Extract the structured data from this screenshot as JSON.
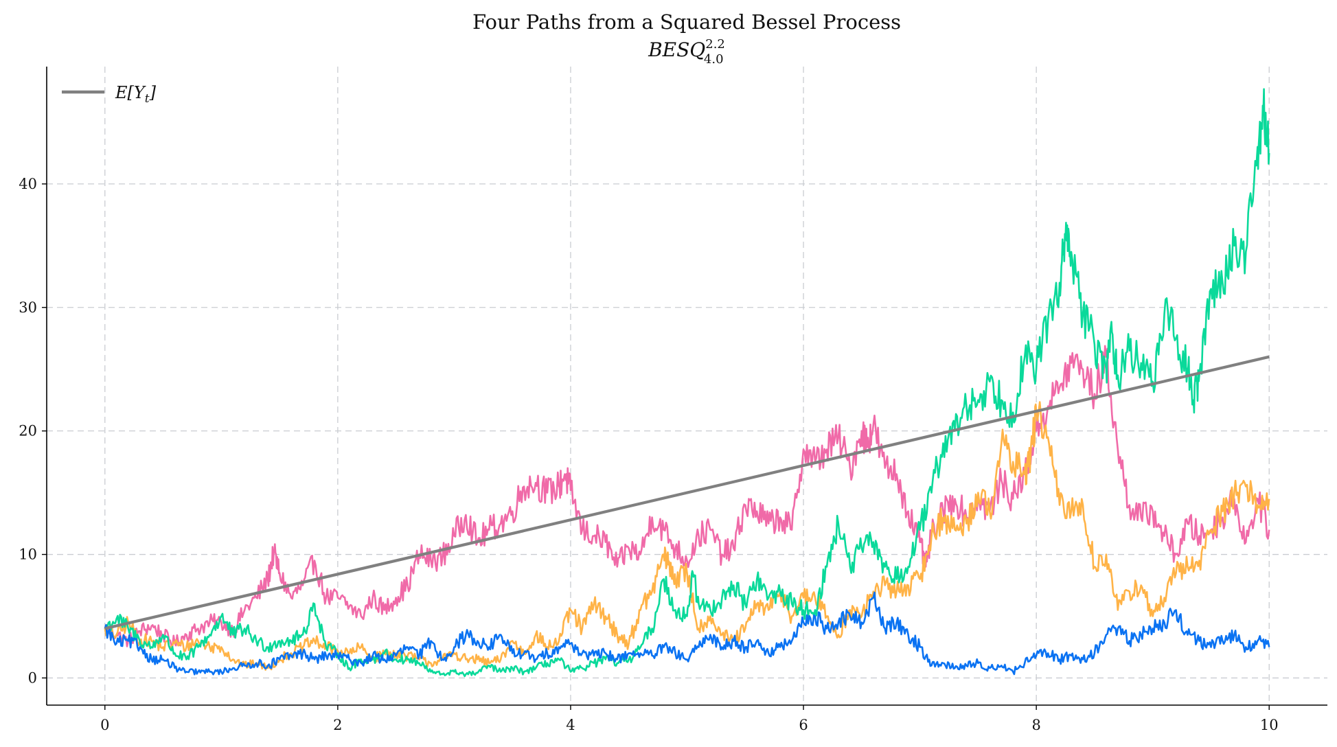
{
  "chart_data": {
    "type": "line",
    "title": "Four Paths from a Squared Bessel Process",
    "subtitle_main": "BESQ",
    "subtitle_sup": "2.2",
    "subtitle_sub": "4.0",
    "xlim": [
      -0.5,
      10.5
    ],
    "ylim": [
      -2.2,
      49.5
    ],
    "xticks": [
      0,
      2,
      4,
      6,
      8,
      10
    ],
    "yticks": [
      0,
      10,
      20,
      30,
      40
    ],
    "grid": true,
    "legend": {
      "placement": "top-left",
      "label_main": "E[Y",
      "label_sub": "t",
      "label_end": "]"
    },
    "colors": {
      "expectation": "#808080",
      "pink": "#f06aa8",
      "orange": "#ffb347",
      "teal": "#0ad99a",
      "blue": "#0a72f2"
    },
    "expectation": {
      "x": [
        0,
        10
      ],
      "y": [
        4.0,
        26.0
      ]
    },
    "series": [
      {
        "key": "pink",
        "x": [
          0,
          0.1,
          0.2,
          0.3,
          0.4,
          0.5,
          0.6,
          0.7,
          0.8,
          0.9,
          1.0,
          1.1,
          1.2,
          1.3,
          1.4,
          1.45,
          1.5,
          1.6,
          1.7,
          1.8,
          1.9,
          2.0,
          2.1,
          2.2,
          2.3,
          2.4,
          2.5,
          2.6,
          2.7,
          2.8,
          2.9,
          3.0,
          3.1,
          3.2,
          3.3,
          3.4,
          3.5,
          3.6,
          3.7,
          3.8,
          3.9,
          3.95,
          4.0,
          4.1,
          4.2,
          4.3,
          4.4,
          4.5,
          4.6,
          4.7,
          4.8,
          4.9,
          5.0,
          5.1,
          5.2,
          5.3,
          5.4,
          5.5,
          5.6,
          5.7,
          5.8,
          5.9,
          6.0,
          6.1,
          6.2,
          6.3,
          6.4,
          6.5,
          6.55,
          6.6,
          6.7,
          6.8,
          6.9,
          7.0,
          7.05,
          7.1,
          7.2,
          7.3,
          7.4,
          7.5,
          7.6,
          7.7,
          7.8,
          7.9,
          8.0,
          8.1,
          8.2,
          8.3,
          8.4,
          8.5,
          8.6,
          8.7,
          8.8,
          8.9,
          9.0,
          9.1,
          9.2,
          9.3,
          9.4,
          9.5,
          9.6,
          9.7,
          9.8,
          9.9,
          10.0
        ],
        "y": [
          4.0,
          3.5,
          3.0,
          3.8,
          4.2,
          3.5,
          2.8,
          3.5,
          4.0,
          4.5,
          4.5,
          3.8,
          5.5,
          6.5,
          8.0,
          10.2,
          8.5,
          6.5,
          7.5,
          9.5,
          6.5,
          6.5,
          5.8,
          5.0,
          6.5,
          5.5,
          6.5,
          7.5,
          10.0,
          9.5,
          9.8,
          11.5,
          13.2,
          11.0,
          12.0,
          12.5,
          13.5,
          15.5,
          15.8,
          15.0,
          15.5,
          16.5,
          15.2,
          12.0,
          11.5,
          11.0,
          9.0,
          10.5,
          10.0,
          13.0,
          12.0,
          10.5,
          9.5,
          11.5,
          12.0,
          10.0,
          10.5,
          14.0,
          13.5,
          12.5,
          13.0,
          12.0,
          18.5,
          17.5,
          18.5,
          19.5,
          17.0,
          20.0,
          19.0,
          20.5,
          17.0,
          16.5,
          13.5,
          11.0,
          9.0,
          11.5,
          13.5,
          14.5,
          13.0,
          14.5,
          13.5,
          16.0,
          14.5,
          16.5,
          20.0,
          22.0,
          23.5,
          25.5,
          25.0,
          23.0,
          26.0,
          18.5,
          14.0,
          13.0,
          13.5,
          11.5,
          10.0,
          12.5,
          11.5,
          12.0,
          13.0,
          14.5,
          11.0,
          14.5,
          12.0
        ]
      },
      {
        "key": "orange",
        "x": [
          0,
          0.1,
          0.2,
          0.3,
          0.4,
          0.5,
          0.6,
          0.7,
          0.8,
          0.9,
          1.0,
          1.1,
          1.2,
          1.3,
          1.4,
          1.5,
          1.6,
          1.7,
          1.8,
          1.9,
          2.0,
          2.1,
          2.2,
          2.3,
          2.4,
          2.5,
          2.6,
          2.7,
          2.8,
          2.9,
          3.0,
          3.1,
          3.2,
          3.3,
          3.4,
          3.5,
          3.6,
          3.7,
          3.8,
          3.9,
          4.0,
          4.1,
          4.2,
          4.3,
          4.4,
          4.5,
          4.6,
          4.7,
          4.8,
          4.85,
          4.9,
          5.0,
          5.1,
          5.2,
          5.3,
          5.4,
          5.5,
          5.6,
          5.7,
          5.8,
          5.9,
          6.0,
          6.1,
          6.2,
          6.3,
          6.4,
          6.5,
          6.6,
          6.7,
          6.8,
          6.9,
          7.0,
          7.1,
          7.2,
          7.3,
          7.4,
          7.5,
          7.6,
          7.7,
          7.8,
          7.9,
          7.95,
          8.0,
          8.1,
          8.2,
          8.3,
          8.4,
          8.5,
          8.6,
          8.7,
          8.8,
          8.9,
          9.0,
          9.1,
          9.2,
          9.3,
          9.4,
          9.5,
          9.6,
          9.7,
          9.8,
          9.9,
          10.0
        ],
        "y": [
          4.0,
          3.5,
          4.5,
          3.0,
          3.0,
          2.5,
          2.8,
          2.5,
          3.0,
          2.5,
          2.5,
          1.5,
          1.0,
          1.2,
          0.8,
          1.5,
          2.0,
          2.5,
          3.0,
          2.5,
          2.2,
          2.0,
          2.5,
          1.5,
          2.0,
          2.0,
          1.8,
          1.5,
          1.2,
          1.5,
          2.0,
          1.5,
          1.5,
          1.2,
          1.5,
          3.0,
          2.0,
          3.5,
          2.5,
          3.0,
          5.5,
          4.0,
          6.0,
          5.0,
          3.5,
          2.8,
          5.5,
          7.0,
          10.0,
          9.0,
          8.0,
          8.5,
          4.0,
          5.0,
          3.5,
          3.0,
          4.0,
          6.0,
          5.5,
          7.0,
          5.0,
          6.5,
          6.5,
          5.0,
          3.5,
          5.5,
          5.0,
          7.0,
          7.5,
          7.0,
          7.5,
          8.0,
          11.5,
          13.0,
          12.0,
          12.5,
          15.0,
          13.5,
          19.0,
          17.5,
          16.5,
          18.0,
          21.5,
          19.5,
          14.0,
          13.5,
          14.0,
          9.0,
          10.0,
          5.5,
          7.0,
          7.5,
          5.0,
          6.5,
          8.5,
          9.0,
          9.5,
          12.0,
          13.5,
          15.0,
          15.5,
          14.0,
          14.5
        ]
      },
      {
        "key": "teal",
        "x": [
          0,
          0.1,
          0.2,
          0.3,
          0.4,
          0.5,
          0.6,
          0.7,
          0.8,
          0.9,
          1.0,
          1.1,
          1.2,
          1.3,
          1.4,
          1.5,
          1.6,
          1.7,
          1.8,
          1.9,
          2.0,
          2.1,
          2.2,
          2.3,
          2.4,
          2.5,
          2.6,
          2.7,
          2.8,
          2.9,
          3.0,
          3.1,
          3.2,
          3.3,
          3.4,
          3.5,
          3.6,
          3.7,
          3.8,
          3.9,
          4.0,
          4.1,
          4.2,
          4.3,
          4.4,
          4.5,
          4.6,
          4.7,
          4.8,
          4.9,
          5.0,
          5.05,
          5.1,
          5.2,
          5.3,
          5.4,
          5.5,
          5.6,
          5.7,
          5.8,
          5.9,
          6.0,
          6.1,
          6.2,
          6.3,
          6.4,
          6.5,
          6.6,
          6.7,
          6.8,
          6.9,
          7.0,
          7.1,
          7.2,
          7.3,
          7.4,
          7.5,
          7.6,
          7.7,
          7.8,
          7.9,
          8.0,
          8.1,
          8.2,
          8.25,
          8.3,
          8.4,
          8.5,
          8.6,
          8.65,
          8.7,
          8.8,
          8.9,
          9.0,
          9.1,
          9.2,
          9.3,
          9.35,
          9.4,
          9.5,
          9.6,
          9.7,
          9.8,
          9.9,
          9.95,
          10.0
        ],
        "y": [
          4.0,
          4.8,
          4.0,
          3.0,
          2.5,
          3.5,
          2.0,
          1.5,
          2.5,
          3.5,
          5.0,
          3.5,
          4.0,
          3.0,
          2.5,
          3.0,
          3.0,
          3.5,
          6.0,
          2.5,
          2.0,
          0.8,
          1.5,
          1.5,
          2.0,
          1.5,
          1.5,
          1.2,
          0.5,
          0.3,
          0.5,
          0.3,
          0.4,
          1.0,
          0.5,
          0.8,
          0.5,
          0.8,
          1.2,
          1.5,
          0.5,
          0.8,
          1.2,
          1.5,
          1.2,
          1.5,
          2.5,
          4.0,
          8.0,
          5.5,
          5.0,
          8.5,
          6.0,
          5.5,
          6.5,
          7.5,
          6.0,
          8.0,
          6.5,
          7.0,
          6.0,
          5.5,
          5.5,
          9.0,
          12.5,
          9.0,
          10.5,
          11.0,
          9.0,
          8.0,
          9.0,
          12.0,
          15.0,
          19.0,
          20.0,
          22.0,
          22.5,
          24.0,
          22.5,
          21.5,
          26.0,
          25.0,
          29.0,
          32.0,
          35.5,
          34.5,
          29.5,
          27.0,
          25.0,
          28.0,
          24.5,
          26.5,
          25.5,
          24.0,
          29.5,
          27.5,
          25.0,
          22.5,
          24.5,
          31.5,
          32.0,
          35.0,
          34.5,
          43.0,
          46.0,
          42.5
        ]
      },
      {
        "key": "blue",
        "x": [
          0,
          0.1,
          0.2,
          0.3,
          0.4,
          0.5,
          0.6,
          0.7,
          0.8,
          0.9,
          1.0,
          1.1,
          1.2,
          1.3,
          1.4,
          1.5,
          1.6,
          1.7,
          1.8,
          1.9,
          2.0,
          2.1,
          2.2,
          2.3,
          2.4,
          2.5,
          2.6,
          2.7,
          2.8,
          2.9,
          3.0,
          3.1,
          3.2,
          3.3,
          3.4,
          3.5,
          3.6,
          3.7,
          3.8,
          3.9,
          4.0,
          4.1,
          4.2,
          4.3,
          4.4,
          4.5,
          4.6,
          4.7,
          4.8,
          4.9,
          5.0,
          5.1,
          5.2,
          5.3,
          5.4,
          5.5,
          5.6,
          5.7,
          5.8,
          5.9,
          6.0,
          6.1,
          6.2,
          6.3,
          6.4,
          6.5,
          6.6,
          6.7,
          6.8,
          6.9,
          7.0,
          7.1,
          7.2,
          7.3,
          7.4,
          7.5,
          7.6,
          7.7,
          7.8,
          7.9,
          8.0,
          8.1,
          8.2,
          8.3,
          8.4,
          8.5,
          8.6,
          8.7,
          8.8,
          8.9,
          9.0,
          9.1,
          9.2,
          9.3,
          9.4,
          9.5,
          9.6,
          9.7,
          9.8,
          9.9,
          10.0
        ],
        "y": [
          4.0,
          2.8,
          3.0,
          2.5,
          1.5,
          1.5,
          0.8,
          0.5,
          0.5,
          0.5,
          0.5,
          0.8,
          1.0,
          1.2,
          1.0,
          1.5,
          1.8,
          2.0,
          1.5,
          1.8,
          1.8,
          1.5,
          1.2,
          1.8,
          1.5,
          1.8,
          2.5,
          1.8,
          3.0,
          1.5,
          2.5,
          3.5,
          3.0,
          2.5,
          3.5,
          2.0,
          2.0,
          1.5,
          2.0,
          2.5,
          2.8,
          2.0,
          1.8,
          2.0,
          1.5,
          2.0,
          2.0,
          1.8,
          2.5,
          2.0,
          1.5,
          2.5,
          3.5,
          2.5,
          3.0,
          2.5,
          3.0,
          2.0,
          2.5,
          3.0,
          4.5,
          5.0,
          4.0,
          4.5,
          5.0,
          4.5,
          6.5,
          4.0,
          4.5,
          3.5,
          2.5,
          1.0,
          1.2,
          0.8,
          1.0,
          1.2,
          0.8,
          1.0,
          0.5,
          1.2,
          1.8,
          2.0,
          1.5,
          1.8,
          1.5,
          2.0,
          3.5,
          4.0,
          3.0,
          3.5,
          4.0,
          4.5,
          5.5,
          3.5,
          3.0,
          2.5,
          3.0,
          3.5,
          2.5,
          3.0,
          2.5
        ]
      }
    ]
  }
}
